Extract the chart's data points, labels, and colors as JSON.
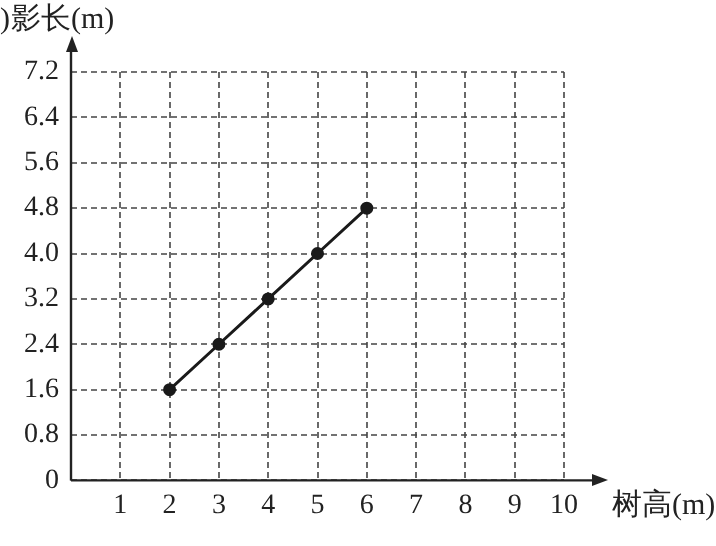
{
  "chart_data": {
    "type": "line",
    "xlabel": "树高(m)",
    "ylabel": "影长(m)",
    "annotations": [
      ")"
    ],
    "x": [
      2,
      3,
      4,
      5,
      6
    ],
    "values": [
      1.6,
      2.4,
      3.2,
      4.0,
      4.8
    ],
    "color": "#1a1a1a",
    "xlim": [
      0,
      10
    ],
    "xticks": [
      {
        "value": 0,
        "label": null
      },
      1,
      2,
      3,
      4,
      5,
      6,
      7,
      8,
      9,
      10
    ],
    "ylim": [
      0,
      7.2
    ],
    "yticks": [
      0,
      {
        "value": 0.8,
        "label": "0.8"
      },
      {
        "value": 1.6,
        "label": "1.6"
      },
      {
        "value": 2.4,
        "label": "2.4"
      },
      {
        "value": 3.2,
        "label": "3.2"
      },
      {
        "value": 4.0,
        "label": "4.0"
      },
      {
        "value": 4.8,
        "label": "4.8"
      },
      {
        "value": 5.6,
        "label": "5.6"
      },
      {
        "value": 6.4,
        "label": "6.4"
      },
      {
        "value": 7.2,
        "label": "7.2"
      }
    ],
    "grid": true,
    "marker": "circle",
    "line_style": "solid",
    "legend": false
  }
}
